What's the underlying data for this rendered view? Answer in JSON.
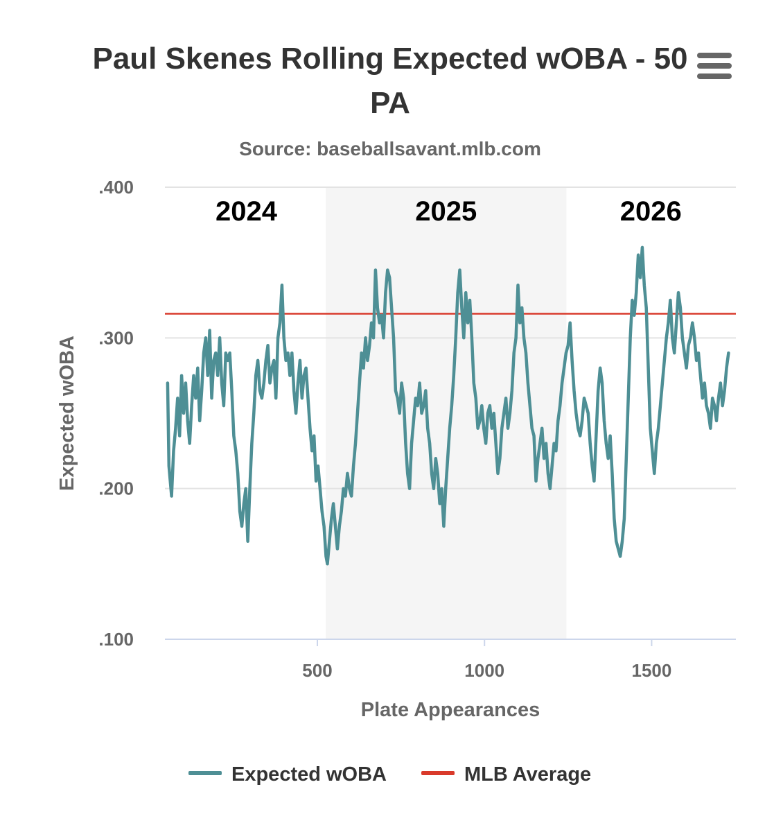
{
  "header": {
    "title_line1": "Paul Skenes Rolling Expected wOBA - 50",
    "title_line2": "PA",
    "subtitle": "Source: baseballsavant.mlb.com"
  },
  "menu": {
    "icon": "hamburger-menu-icon"
  },
  "colors": {
    "series": "#4e8f95",
    "average": "#d93a2b",
    "band": "#f5f5f5",
    "grid": "#e3e3e3",
    "axis": "#ccd6eb"
  },
  "chart_data": {
    "type": "line",
    "title": "Paul Skenes Rolling Expected wOBA - 50 PA",
    "subtitle": "Source: baseballsavant.mlb.com",
    "xlabel": "Plate Appearances",
    "ylabel": "Expected wOBA",
    "xlim": [
      50,
      1750
    ],
    "ylim": [
      0.1,
      0.4
    ],
    "x_ticks": [
      {
        "value": 500,
        "label": "500"
      },
      {
        "value": 1000,
        "label": "1000"
      },
      {
        "value": 1500,
        "label": "1500"
      }
    ],
    "y_ticks": [
      {
        "value": 0.1,
        "label": ".100"
      },
      {
        "value": 0.2,
        "label": ".200"
      },
      {
        "value": 0.3,
        "label": ".300"
      },
      {
        "value": 0.4,
        "label": ".400"
      }
    ],
    "grid": true,
    "legend_position": "bottom-center",
    "season_bands": [
      {
        "label": "2024",
        "from": 50,
        "to": 525,
        "shaded": false
      },
      {
        "label": "2025",
        "from": 525,
        "to": 1245,
        "shaded": true
      },
      {
        "label": "2026",
        "from": 1245,
        "to": 1750,
        "shaded": false
      }
    ],
    "reference_lines": [
      {
        "name": "MLB Average",
        "value": 0.316
      }
    ],
    "series": [
      {
        "name": "Expected wOBA",
        "points": [
          [
            52,
            0.27
          ],
          [
            56,
            0.215
          ],
          [
            60,
            0.205
          ],
          [
            64,
            0.195
          ],
          [
            70,
            0.225
          ],
          [
            76,
            0.24
          ],
          [
            82,
            0.26
          ],
          [
            88,
            0.235
          ],
          [
            94,
            0.275
          ],
          [
            100,
            0.25
          ],
          [
            106,
            0.27
          ],
          [
            112,
            0.245
          ],
          [
            118,
            0.23
          ],
          [
            124,
            0.255
          ],
          [
            130,
            0.275
          ],
          [
            136,
            0.26
          ],
          [
            142,
            0.28
          ],
          [
            148,
            0.245
          ],
          [
            154,
            0.265
          ],
          [
            160,
            0.29
          ],
          [
            166,
            0.3
          ],
          [
            172,
            0.275
          ],
          [
            178,
            0.305
          ],
          [
            184,
            0.26
          ],
          [
            190,
            0.285
          ],
          [
            196,
            0.29
          ],
          [
            202,
            0.275
          ],
          [
            208,
            0.3
          ],
          [
            214,
            0.27
          ],
          [
            220,
            0.255
          ],
          [
            226,
            0.29
          ],
          [
            232,
            0.285
          ],
          [
            238,
            0.29
          ],
          [
            244,
            0.265
          ],
          [
            250,
            0.235
          ],
          [
            256,
            0.225
          ],
          [
            262,
            0.21
          ],
          [
            268,
            0.185
          ],
          [
            274,
            0.175
          ],
          [
            280,
            0.19
          ],
          [
            286,
            0.2
          ],
          [
            292,
            0.165
          ],
          [
            298,
            0.2
          ],
          [
            304,
            0.23
          ],
          [
            310,
            0.25
          ],
          [
            316,
            0.275
          ],
          [
            322,
            0.285
          ],
          [
            328,
            0.265
          ],
          [
            334,
            0.26
          ],
          [
            340,
            0.27
          ],
          [
            346,
            0.285
          ],
          [
            352,
            0.295
          ],
          [
            358,
            0.27
          ],
          [
            364,
            0.28
          ],
          [
            370,
            0.285
          ],
          [
            376,
            0.26
          ],
          [
            382,
            0.3
          ],
          [
            388,
            0.31
          ],
          [
            394,
            0.335
          ],
          [
            400,
            0.3
          ],
          [
            406,
            0.285
          ],
          [
            412,
            0.29
          ],
          [
            418,
            0.275
          ],
          [
            424,
            0.29
          ],
          [
            430,
            0.265
          ],
          [
            436,
            0.25
          ],
          [
            442,
            0.27
          ],
          [
            448,
            0.285
          ],
          [
            454,
            0.26
          ],
          [
            460,
            0.275
          ],
          [
            466,
            0.28
          ],
          [
            472,
            0.26
          ],
          [
            478,
            0.24
          ],
          [
            484,
            0.225
          ],
          [
            490,
            0.235
          ],
          [
            496,
            0.205
          ],
          [
            502,
            0.215
          ],
          [
            508,
            0.2
          ],
          [
            514,
            0.185
          ],
          [
            520,
            0.175
          ],
          [
            526,
            0.155
          ],
          [
            530,
            0.15
          ],
          [
            536,
            0.165
          ],
          [
            542,
            0.18
          ],
          [
            548,
            0.19
          ],
          [
            554,
            0.175
          ],
          [
            560,
            0.16
          ],
          [
            566,
            0.175
          ],
          [
            572,
            0.185
          ],
          [
            578,
            0.2
          ],
          [
            584,
            0.195
          ],
          [
            590,
            0.21
          ],
          [
            596,
            0.2
          ],
          [
            602,
            0.195
          ],
          [
            608,
            0.215
          ],
          [
            614,
            0.23
          ],
          [
            620,
            0.25
          ],
          [
            626,
            0.27
          ],
          [
            632,
            0.29
          ],
          [
            638,
            0.28
          ],
          [
            644,
            0.3
          ],
          [
            650,
            0.285
          ],
          [
            656,
            0.295
          ],
          [
            662,
            0.31
          ],
          [
            668,
            0.3
          ],
          [
            674,
            0.345
          ],
          [
            680,
            0.32
          ],
          [
            686,
            0.31
          ],
          [
            692,
            0.315
          ],
          [
            698,
            0.3
          ],
          [
            704,
            0.33
          ],
          [
            710,
            0.345
          ],
          [
            716,
            0.34
          ],
          [
            722,
            0.32
          ],
          [
            728,
            0.3
          ],
          [
            734,
            0.265
          ],
          [
            740,
            0.26
          ],
          [
            746,
            0.25
          ],
          [
            752,
            0.27
          ],
          [
            758,
            0.26
          ],
          [
            764,
            0.23
          ],
          [
            770,
            0.21
          ],
          [
            776,
            0.2
          ],
          [
            782,
            0.23
          ],
          [
            788,
            0.245
          ],
          [
            794,
            0.26
          ],
          [
            800,
            0.255
          ],
          [
            806,
            0.27
          ],
          [
            812,
            0.25
          ],
          [
            818,
            0.255
          ],
          [
            824,
            0.265
          ],
          [
            830,
            0.24
          ],
          [
            836,
            0.23
          ],
          [
            842,
            0.21
          ],
          [
            848,
            0.2
          ],
          [
            854,
            0.22
          ],
          [
            860,
            0.21
          ],
          [
            866,
            0.19
          ],
          [
            872,
            0.2
          ],
          [
            878,
            0.175
          ],
          [
            884,
            0.2
          ],
          [
            890,
            0.22
          ],
          [
            896,
            0.24
          ],
          [
            902,
            0.255
          ],
          [
            908,
            0.275
          ],
          [
            914,
            0.3
          ],
          [
            920,
            0.33
          ],
          [
            926,
            0.345
          ],
          [
            932,
            0.32
          ],
          [
            938,
            0.3
          ],
          [
            944,
            0.33
          ],
          [
            950,
            0.31
          ],
          [
            956,
            0.325
          ],
          [
            962,
            0.3
          ],
          [
            968,
            0.27
          ],
          [
            974,
            0.26
          ],
          [
            980,
            0.24
          ],
          [
            986,
            0.245
          ],
          [
            992,
            0.255
          ],
          [
            998,
            0.24
          ],
          [
            1004,
            0.23
          ],
          [
            1010,
            0.25
          ],
          [
            1016,
            0.255
          ],
          [
            1022,
            0.24
          ],
          [
            1028,
            0.25
          ],
          [
            1034,
            0.23
          ],
          [
            1040,
            0.21
          ],
          [
            1046,
            0.22
          ],
          [
            1052,
            0.24
          ],
          [
            1058,
            0.25
          ],
          [
            1064,
            0.26
          ],
          [
            1070,
            0.24
          ],
          [
            1076,
            0.25
          ],
          [
            1082,
            0.265
          ],
          [
            1088,
            0.29
          ],
          [
            1094,
            0.3
          ],
          [
            1100,
            0.335
          ],
          [
            1106,
            0.31
          ],
          [
            1112,
            0.32
          ],
          [
            1118,
            0.3
          ],
          [
            1124,
            0.29
          ],
          [
            1130,
            0.27
          ],
          [
            1136,
            0.255
          ],
          [
            1142,
            0.24
          ],
          [
            1148,
            0.235
          ],
          [
            1154,
            0.205
          ],
          [
            1160,
            0.22
          ],
          [
            1166,
            0.23
          ],
          [
            1172,
            0.24
          ],
          [
            1178,
            0.22
          ],
          [
            1184,
            0.23
          ],
          [
            1190,
            0.21
          ],
          [
            1196,
            0.2
          ],
          [
            1202,
            0.215
          ],
          [
            1208,
            0.23
          ],
          [
            1214,
            0.225
          ],
          [
            1220,
            0.245
          ],
          [
            1226,
            0.255
          ],
          [
            1232,
            0.27
          ],
          [
            1238,
            0.28
          ],
          [
            1244,
            0.29
          ],
          [
            1250,
            0.295
          ],
          [
            1256,
            0.31
          ],
          [
            1262,
            0.285
          ],
          [
            1268,
            0.265
          ],
          [
            1274,
            0.25
          ],
          [
            1280,
            0.24
          ],
          [
            1286,
            0.235
          ],
          [
            1292,
            0.245
          ],
          [
            1298,
            0.26
          ],
          [
            1304,
            0.255
          ],
          [
            1310,
            0.25
          ],
          [
            1316,
            0.23
          ],
          [
            1322,
            0.215
          ],
          [
            1328,
            0.205
          ],
          [
            1334,
            0.235
          ],
          [
            1340,
            0.265
          ],
          [
            1346,
            0.28
          ],
          [
            1352,
            0.27
          ],
          [
            1358,
            0.245
          ],
          [
            1364,
            0.23
          ],
          [
            1370,
            0.22
          ],
          [
            1376,
            0.235
          ],
          [
            1382,
            0.21
          ],
          [
            1388,
            0.18
          ],
          [
            1394,
            0.165
          ],
          [
            1400,
            0.16
          ],
          [
            1406,
            0.155
          ],
          [
            1412,
            0.165
          ],
          [
            1418,
            0.18
          ],
          [
            1424,
            0.22
          ],
          [
            1430,
            0.26
          ],
          [
            1436,
            0.3
          ],
          [
            1442,
            0.325
          ],
          [
            1448,
            0.315
          ],
          [
            1454,
            0.33
          ],
          [
            1460,
            0.355
          ],
          [
            1466,
            0.34
          ],
          [
            1472,
            0.36
          ],
          [
            1478,
            0.335
          ],
          [
            1484,
            0.32
          ],
          [
            1490,
            0.28
          ],
          [
            1496,
            0.24
          ],
          [
            1502,
            0.225
          ],
          [
            1508,
            0.21
          ],
          [
            1514,
            0.23
          ],
          [
            1520,
            0.24
          ],
          [
            1526,
            0.255
          ],
          [
            1532,
            0.27
          ],
          [
            1538,
            0.285
          ],
          [
            1544,
            0.3
          ],
          [
            1550,
            0.31
          ],
          [
            1556,
            0.325
          ],
          [
            1562,
            0.3
          ],
          [
            1568,
            0.29
          ],
          [
            1574,
            0.31
          ],
          [
            1580,
            0.33
          ],
          [
            1586,
            0.32
          ],
          [
            1592,
            0.3
          ],
          [
            1598,
            0.29
          ],
          [
            1604,
            0.28
          ],
          [
            1610,
            0.295
          ],
          [
            1616,
            0.3
          ],
          [
            1622,
            0.31
          ],
          [
            1628,
            0.3
          ],
          [
            1634,
            0.285
          ],
          [
            1640,
            0.29
          ],
          [
            1646,
            0.275
          ],
          [
            1652,
            0.26
          ],
          [
            1658,
            0.27
          ],
          [
            1664,
            0.255
          ],
          [
            1670,
            0.25
          ],
          [
            1676,
            0.24
          ],
          [
            1682,
            0.26
          ],
          [
            1688,
            0.255
          ],
          [
            1694,
            0.245
          ],
          [
            1700,
            0.26
          ],
          [
            1706,
            0.27
          ],
          [
            1712,
            0.255
          ],
          [
            1718,
            0.265
          ],
          [
            1724,
            0.28
          ],
          [
            1730,
            0.29
          ]
        ]
      }
    ],
    "legend": [
      {
        "label": "Expected wOBA",
        "color": "#4e8f95"
      },
      {
        "label": "MLB Average",
        "color": "#d93a2b"
      }
    ]
  }
}
